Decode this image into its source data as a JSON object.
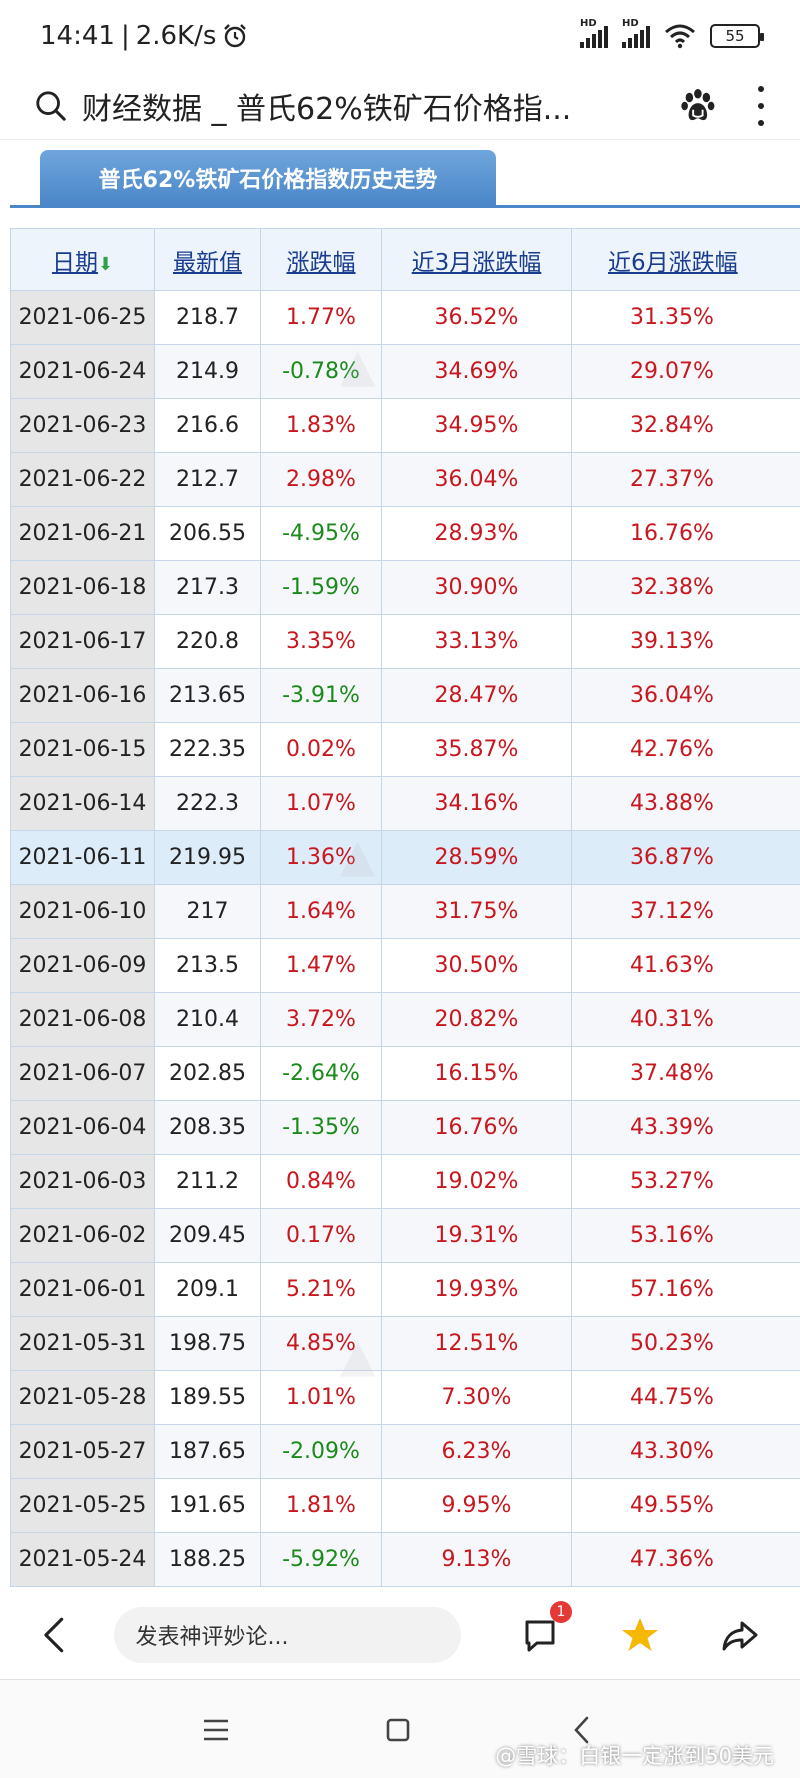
{
  "status_bar": {
    "time": "14:41",
    "separator": "|",
    "net_speed": "2.6K/s",
    "hd1": "HD",
    "hd2": "HD",
    "battery": "55"
  },
  "title_bar": {
    "title": "财经数据 _ 普氏62%铁矿石价格指..."
  },
  "tab": {
    "label": "普氏62%铁矿石价格指数历史走势"
  },
  "table": {
    "headers": {
      "date": "日期",
      "latest": "最新值",
      "change": "涨跌幅",
      "change_3m": "近3月涨跌幅",
      "change_6m": "近6月涨跌幅"
    },
    "rows": [
      {
        "date": "2021-06-25",
        "latest": "218.7",
        "change": "1.77%",
        "change_3m": "36.52%",
        "change_6m": "31.35%"
      },
      {
        "date": "2021-06-24",
        "latest": "214.9",
        "change": "-0.78%",
        "change_3m": "34.69%",
        "change_6m": "29.07%"
      },
      {
        "date": "2021-06-23",
        "latest": "216.6",
        "change": "1.83%",
        "change_3m": "34.95%",
        "change_6m": "32.84%"
      },
      {
        "date": "2021-06-22",
        "latest": "212.7",
        "change": "2.98%",
        "change_3m": "36.04%",
        "change_6m": "27.37%"
      },
      {
        "date": "2021-06-21",
        "latest": "206.55",
        "change": "-4.95%",
        "change_3m": "28.93%",
        "change_6m": "16.76%"
      },
      {
        "date": "2021-06-18",
        "latest": "217.3",
        "change": "-1.59%",
        "change_3m": "30.90%",
        "change_6m": "32.38%"
      },
      {
        "date": "2021-06-17",
        "latest": "220.8",
        "change": "3.35%",
        "change_3m": "33.13%",
        "change_6m": "39.13%"
      },
      {
        "date": "2021-06-16",
        "latest": "213.65",
        "change": "-3.91%",
        "change_3m": "28.47%",
        "change_6m": "36.04%"
      },
      {
        "date": "2021-06-15",
        "latest": "222.35",
        "change": "0.02%",
        "change_3m": "35.87%",
        "change_6m": "42.76%"
      },
      {
        "date": "2021-06-14",
        "latest": "222.3",
        "change": "1.07%",
        "change_3m": "34.16%",
        "change_6m": "43.88%"
      },
      {
        "date": "2021-06-11",
        "latest": "219.95",
        "change": "1.36%",
        "change_3m": "28.59%",
        "change_6m": "36.87%"
      },
      {
        "date": "2021-06-10",
        "latest": "217",
        "change": "1.64%",
        "change_3m": "31.75%",
        "change_6m": "37.12%"
      },
      {
        "date": "2021-06-09",
        "latest": "213.5",
        "change": "1.47%",
        "change_3m": "30.50%",
        "change_6m": "41.63%"
      },
      {
        "date": "2021-06-08",
        "latest": "210.4",
        "change": "3.72%",
        "change_3m": "20.82%",
        "change_6m": "40.31%"
      },
      {
        "date": "2021-06-07",
        "latest": "202.85",
        "change": "-2.64%",
        "change_3m": "16.15%",
        "change_6m": "37.48%"
      },
      {
        "date": "2021-06-04",
        "latest": "208.35",
        "change": "-1.35%",
        "change_3m": "16.76%",
        "change_6m": "43.39%"
      },
      {
        "date": "2021-06-03",
        "latest": "211.2",
        "change": "0.84%",
        "change_3m": "19.02%",
        "change_6m": "53.27%"
      },
      {
        "date": "2021-06-02",
        "latest": "209.45",
        "change": "0.17%",
        "change_3m": "19.31%",
        "change_6m": "53.16%"
      },
      {
        "date": "2021-06-01",
        "latest": "209.1",
        "change": "5.21%",
        "change_3m": "19.93%",
        "change_6m": "57.16%"
      },
      {
        "date": "2021-05-31",
        "latest": "198.75",
        "change": "4.85%",
        "change_3m": "12.51%",
        "change_6m": "50.23%"
      },
      {
        "date": "2021-05-28",
        "latest": "189.55",
        "change": "1.01%",
        "change_3m": "7.30%",
        "change_6m": "44.75%"
      },
      {
        "date": "2021-05-27",
        "latest": "187.65",
        "change": "-2.09%",
        "change_3m": "6.23%",
        "change_6m": "43.30%"
      },
      {
        "date": "2021-05-25",
        "latest": "191.65",
        "change": "1.81%",
        "change_3m": "9.95%",
        "change_6m": "49.55%"
      },
      {
        "date": "2021-05-24",
        "latest": "188.25",
        "change": "-5.92%",
        "change_3m": "9.13%",
        "change_6m": "47.36%"
      }
    ],
    "highlighted_row": 10,
    "colors": {
      "up": "#c8171e",
      "down": "#1a8a1a",
      "header_link": "#1a3d8f"
    }
  },
  "bottom_bar": {
    "comment_placeholder": "发表神评妙论...",
    "comment_badge": "1"
  },
  "footer": {
    "watermark": "@雪球：白银一定涨到50美元"
  },
  "icons": [
    "search-icon",
    "paw-icon",
    "more-icon",
    "back-icon",
    "comment-icon",
    "star-icon",
    "share-icon",
    "menu-icon",
    "home-icon",
    "nav-back-icon"
  ]
}
